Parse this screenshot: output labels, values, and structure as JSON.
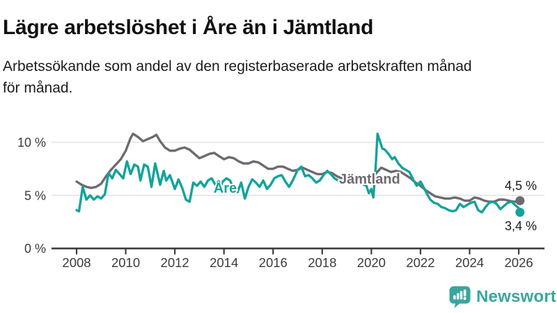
{
  "chart_data": {
    "type": "line",
    "title": "Lägre arbetslöshet i Åre än i Jämtland",
    "subtitle_lines": [
      "Arbetssökande som andel av den registerbaserade arbetskraften månad",
      "för månad."
    ],
    "unit": "%",
    "grid": "horizontal gridlines at 5% and 10%, dark baseline at 0%",
    "legend_position": "inline labels on lines plus end-value labels",
    "x_range": [
      2008,
      2026.2
    ],
    "y_range": [
      0,
      11.5
    ],
    "x_ticks": [
      2008,
      2010,
      2012,
      2014,
      2016,
      2018,
      2020,
      2022,
      2024,
      2026
    ],
    "y_ticks": [
      {
        "value": 10,
        "label": "10 %"
      },
      {
        "value": 5,
        "label": "5 %"
      },
      {
        "value": 0,
        "label": "0 %"
      }
    ],
    "series": [
      {
        "name": "Jämtland",
        "color": "#6d6a70",
        "end_label": "4,5 %",
        "end_value": 4.5,
        "label_anchor": {
          "year": 2019.93,
          "value": 6.55
        },
        "points": [
          [
            2008.0,
            6.3
          ],
          [
            2008.2,
            6.0
          ],
          [
            2008.4,
            5.8
          ],
          [
            2008.6,
            5.7
          ],
          [
            2008.8,
            5.8
          ],
          [
            2009.0,
            6.1
          ],
          [
            2009.2,
            6.8
          ],
          [
            2009.4,
            7.4
          ],
          [
            2009.6,
            7.9
          ],
          [
            2009.8,
            8.4
          ],
          [
            2010.0,
            9.2
          ],
          [
            2010.2,
            10.4
          ],
          [
            2010.3,
            10.8
          ],
          [
            2010.5,
            10.5
          ],
          [
            2010.7,
            10.1
          ],
          [
            2010.9,
            10.3
          ],
          [
            2011.1,
            10.5
          ],
          [
            2011.25,
            10.7
          ],
          [
            2011.4,
            10.1
          ],
          [
            2011.6,
            9.5
          ],
          [
            2011.8,
            9.2
          ],
          [
            2012.0,
            9.2
          ],
          [
            2012.2,
            9.4
          ],
          [
            2012.4,
            9.5
          ],
          [
            2012.6,
            9.3
          ],
          [
            2012.8,
            8.9
          ],
          [
            2013.0,
            8.5
          ],
          [
            2013.2,
            8.7
          ],
          [
            2013.4,
            8.9
          ],
          [
            2013.6,
            9.0
          ],
          [
            2013.8,
            8.7
          ],
          [
            2014.0,
            8.4
          ],
          [
            2014.2,
            8.6
          ],
          [
            2014.4,
            8.5
          ],
          [
            2014.6,
            8.2
          ],
          [
            2014.8,
            8.0
          ],
          [
            2015.0,
            8.0
          ],
          [
            2015.2,
            8.2
          ],
          [
            2015.4,
            8.1
          ],
          [
            2015.6,
            7.8
          ],
          [
            2015.8,
            7.5
          ],
          [
            2016.0,
            7.5
          ],
          [
            2016.2,
            7.7
          ],
          [
            2016.4,
            7.7
          ],
          [
            2016.6,
            7.5
          ],
          [
            2016.8,
            7.3
          ],
          [
            2017.0,
            7.4
          ],
          [
            2017.2,
            7.6
          ],
          [
            2017.4,
            7.4
          ],
          [
            2017.6,
            7.2
          ],
          [
            2017.8,
            7.0
          ],
          [
            2018.0,
            7.0
          ],
          [
            2018.2,
            7.2
          ],
          [
            2018.4,
            7.1
          ],
          [
            2018.6,
            6.8
          ],
          [
            2018.8,
            6.6
          ],
          [
            2019.0,
            6.6
          ],
          [
            2019.2,
            6.8
          ],
          [
            2019.4,
            6.8
          ],
          [
            2019.6,
            6.6
          ],
          [
            2019.8,
            6.5
          ],
          [
            2020.0,
            6.6
          ],
          [
            2020.2,
            7.1
          ],
          [
            2020.4,
            7.6
          ],
          [
            2020.6,
            7.4
          ],
          [
            2020.8,
            7.2
          ],
          [
            2021.0,
            7.3
          ],
          [
            2021.2,
            7.2
          ],
          [
            2021.4,
            6.9
          ],
          [
            2021.6,
            6.6
          ],
          [
            2021.8,
            6.2
          ],
          [
            2022.0,
            5.9
          ],
          [
            2022.2,
            5.5
          ],
          [
            2022.4,
            5.2
          ],
          [
            2022.6,
            4.9
          ],
          [
            2022.8,
            4.8
          ],
          [
            2023.0,
            4.7
          ],
          [
            2023.2,
            4.7
          ],
          [
            2023.4,
            4.8
          ],
          [
            2023.6,
            4.7
          ],
          [
            2023.8,
            4.5
          ],
          [
            2024.0,
            4.5
          ],
          [
            2024.2,
            4.8
          ],
          [
            2024.4,
            4.7
          ],
          [
            2024.6,
            4.5
          ],
          [
            2024.8,
            4.4
          ],
          [
            2025.0,
            4.4
          ],
          [
            2025.2,
            4.6
          ],
          [
            2025.4,
            4.6
          ],
          [
            2025.6,
            4.5
          ],
          [
            2025.8,
            4.4
          ],
          [
            2026.0,
            4.4
          ],
          [
            2026.05,
            4.5
          ]
        ]
      },
      {
        "name": "Åre",
        "color": "#12a39a",
        "end_label": "3,4 %",
        "end_value": 3.4,
        "label_anchor": {
          "year": 2014.05,
          "value": 5.7
        },
        "points": [
          [
            2008.0,
            3.6
          ],
          [
            2008.1,
            3.5
          ],
          [
            2008.25,
            5.8
          ],
          [
            2008.4,
            4.6
          ],
          [
            2008.55,
            5.0
          ],
          [
            2008.7,
            4.6
          ],
          [
            2008.85,
            4.9
          ],
          [
            2009.0,
            4.7
          ],
          [
            2009.15,
            5.1
          ],
          [
            2009.3,
            7.1
          ],
          [
            2009.45,
            6.6
          ],
          [
            2009.6,
            7.4
          ],
          [
            2009.75,
            7.0
          ],
          [
            2009.9,
            6.6
          ],
          [
            2010.05,
            8.2
          ],
          [
            2010.2,
            7.0
          ],
          [
            2010.35,
            7.9
          ],
          [
            2010.5,
            7.7
          ],
          [
            2010.6,
            6.4
          ],
          [
            2010.75,
            7.9
          ],
          [
            2010.9,
            7.7
          ],
          [
            2011.05,
            5.8
          ],
          [
            2011.2,
            8.0
          ],
          [
            2011.4,
            6.0
          ],
          [
            2011.55,
            7.3
          ],
          [
            2011.65,
            6.4
          ],
          [
            2011.8,
            6.9
          ],
          [
            2012.0,
            5.6
          ],
          [
            2012.15,
            6.5
          ],
          [
            2012.3,
            5.7
          ],
          [
            2012.45,
            4.6
          ],
          [
            2012.6,
            4.4
          ],
          [
            2012.75,
            6.2
          ],
          [
            2012.9,
            5.9
          ],
          [
            2013.05,
            6.3
          ],
          [
            2013.2,
            5.8
          ],
          [
            2013.35,
            6.4
          ],
          [
            2013.5,
            6.6
          ],
          [
            2013.65,
            6.0
          ],
          [
            2013.8,
            5.5
          ],
          [
            2013.95,
            6.3
          ],
          [
            2014.1,
            6.6
          ],
          [
            2014.25,
            6.4
          ],
          [
            2014.4,
            5.5
          ],
          [
            2014.55,
            5.3
          ],
          [
            2014.7,
            6.2
          ],
          [
            2014.85,
            4.7
          ],
          [
            2015.0,
            5.8
          ],
          [
            2015.15,
            6.5
          ],
          [
            2015.3,
            6.2
          ],
          [
            2015.45,
            5.8
          ],
          [
            2015.6,
            6.4
          ],
          [
            2015.75,
            5.6
          ],
          [
            2015.9,
            6.0
          ],
          [
            2016.05,
            6.6
          ],
          [
            2016.2,
            6.8
          ],
          [
            2016.35,
            6.9
          ],
          [
            2016.5,
            6.3
          ],
          [
            2016.65,
            5.8
          ],
          [
            2016.8,
            6.4
          ],
          [
            2017.0,
            7.4
          ],
          [
            2017.15,
            7.7
          ],
          [
            2017.3,
            6.8
          ],
          [
            2017.45,
            6.9
          ],
          [
            2017.6,
            6.6
          ],
          [
            2017.75,
            6.2
          ],
          [
            2017.9,
            6.4
          ],
          [
            2018.05,
            6.9
          ],
          [
            2018.2,
            7.3
          ],
          [
            2018.35,
            7.0
          ],
          [
            2018.5,
            6.6
          ],
          [
            2018.65,
            6.4
          ],
          [
            2018.8,
            6.4
          ],
          [
            2018.95,
            6.6
          ],
          [
            2019.1,
            6.9
          ],
          [
            2019.25,
            6.7
          ],
          [
            2019.4,
            6.4
          ],
          [
            2019.55,
            6.2
          ],
          [
            2019.7,
            6.0
          ],
          [
            2019.8,
            5.9
          ],
          [
            2019.9,
            5.2
          ],
          [
            2020.0,
            5.6
          ],
          [
            2020.08,
            4.8
          ],
          [
            2020.17,
            7.5
          ],
          [
            2020.25,
            10.8
          ],
          [
            2020.35,
            10.1
          ],
          [
            2020.45,
            9.4
          ],
          [
            2020.55,
            9.3
          ],
          [
            2020.7,
            8.9
          ],
          [
            2020.85,
            8.4
          ],
          [
            2020.95,
            8.6
          ],
          [
            2021.1,
            8.0
          ],
          [
            2021.25,
            7.6
          ],
          [
            2021.4,
            7.4
          ],
          [
            2021.55,
            7.2
          ],
          [
            2021.7,
            6.5
          ],
          [
            2021.85,
            5.9
          ],
          [
            2022.0,
            6.3
          ],
          [
            2022.1,
            5.9
          ],
          [
            2022.25,
            5.2
          ],
          [
            2022.4,
            4.6
          ],
          [
            2022.55,
            4.3
          ],
          [
            2022.7,
            4.2
          ],
          [
            2022.85,
            3.9
          ],
          [
            2023.0,
            3.8
          ],
          [
            2023.15,
            3.6
          ],
          [
            2023.3,
            3.5
          ],
          [
            2023.45,
            3.6
          ],
          [
            2023.6,
            4.2
          ],
          [
            2023.75,
            3.9
          ],
          [
            2023.9,
            4.1
          ],
          [
            2024.05,
            4.3
          ],
          [
            2024.2,
            4.4
          ],
          [
            2024.35,
            3.6
          ],
          [
            2024.5,
            3.4
          ],
          [
            2024.65,
            3.9
          ],
          [
            2024.8,
            4.3
          ],
          [
            2024.95,
            4.4
          ],
          [
            2025.1,
            4.2
          ],
          [
            2025.25,
            3.7
          ],
          [
            2025.4,
            4.0
          ],
          [
            2025.55,
            4.3
          ],
          [
            2025.7,
            4.4
          ],
          [
            2025.85,
            4.1
          ],
          [
            2026.0,
            3.8
          ],
          [
            2026.05,
            3.4
          ]
        ]
      }
    ],
    "colors": {
      "axis": "#3d3d3d",
      "grid": "#e4e4e4",
      "tick_text": "#3b3b3b",
      "end_label_text": "#1a1a1a"
    }
  },
  "footer": {
    "brand": "Newsworthy",
    "brand_color": "#3aa69e",
    "icon": "newsworthy-speech-bubble-barchart-icon"
  }
}
